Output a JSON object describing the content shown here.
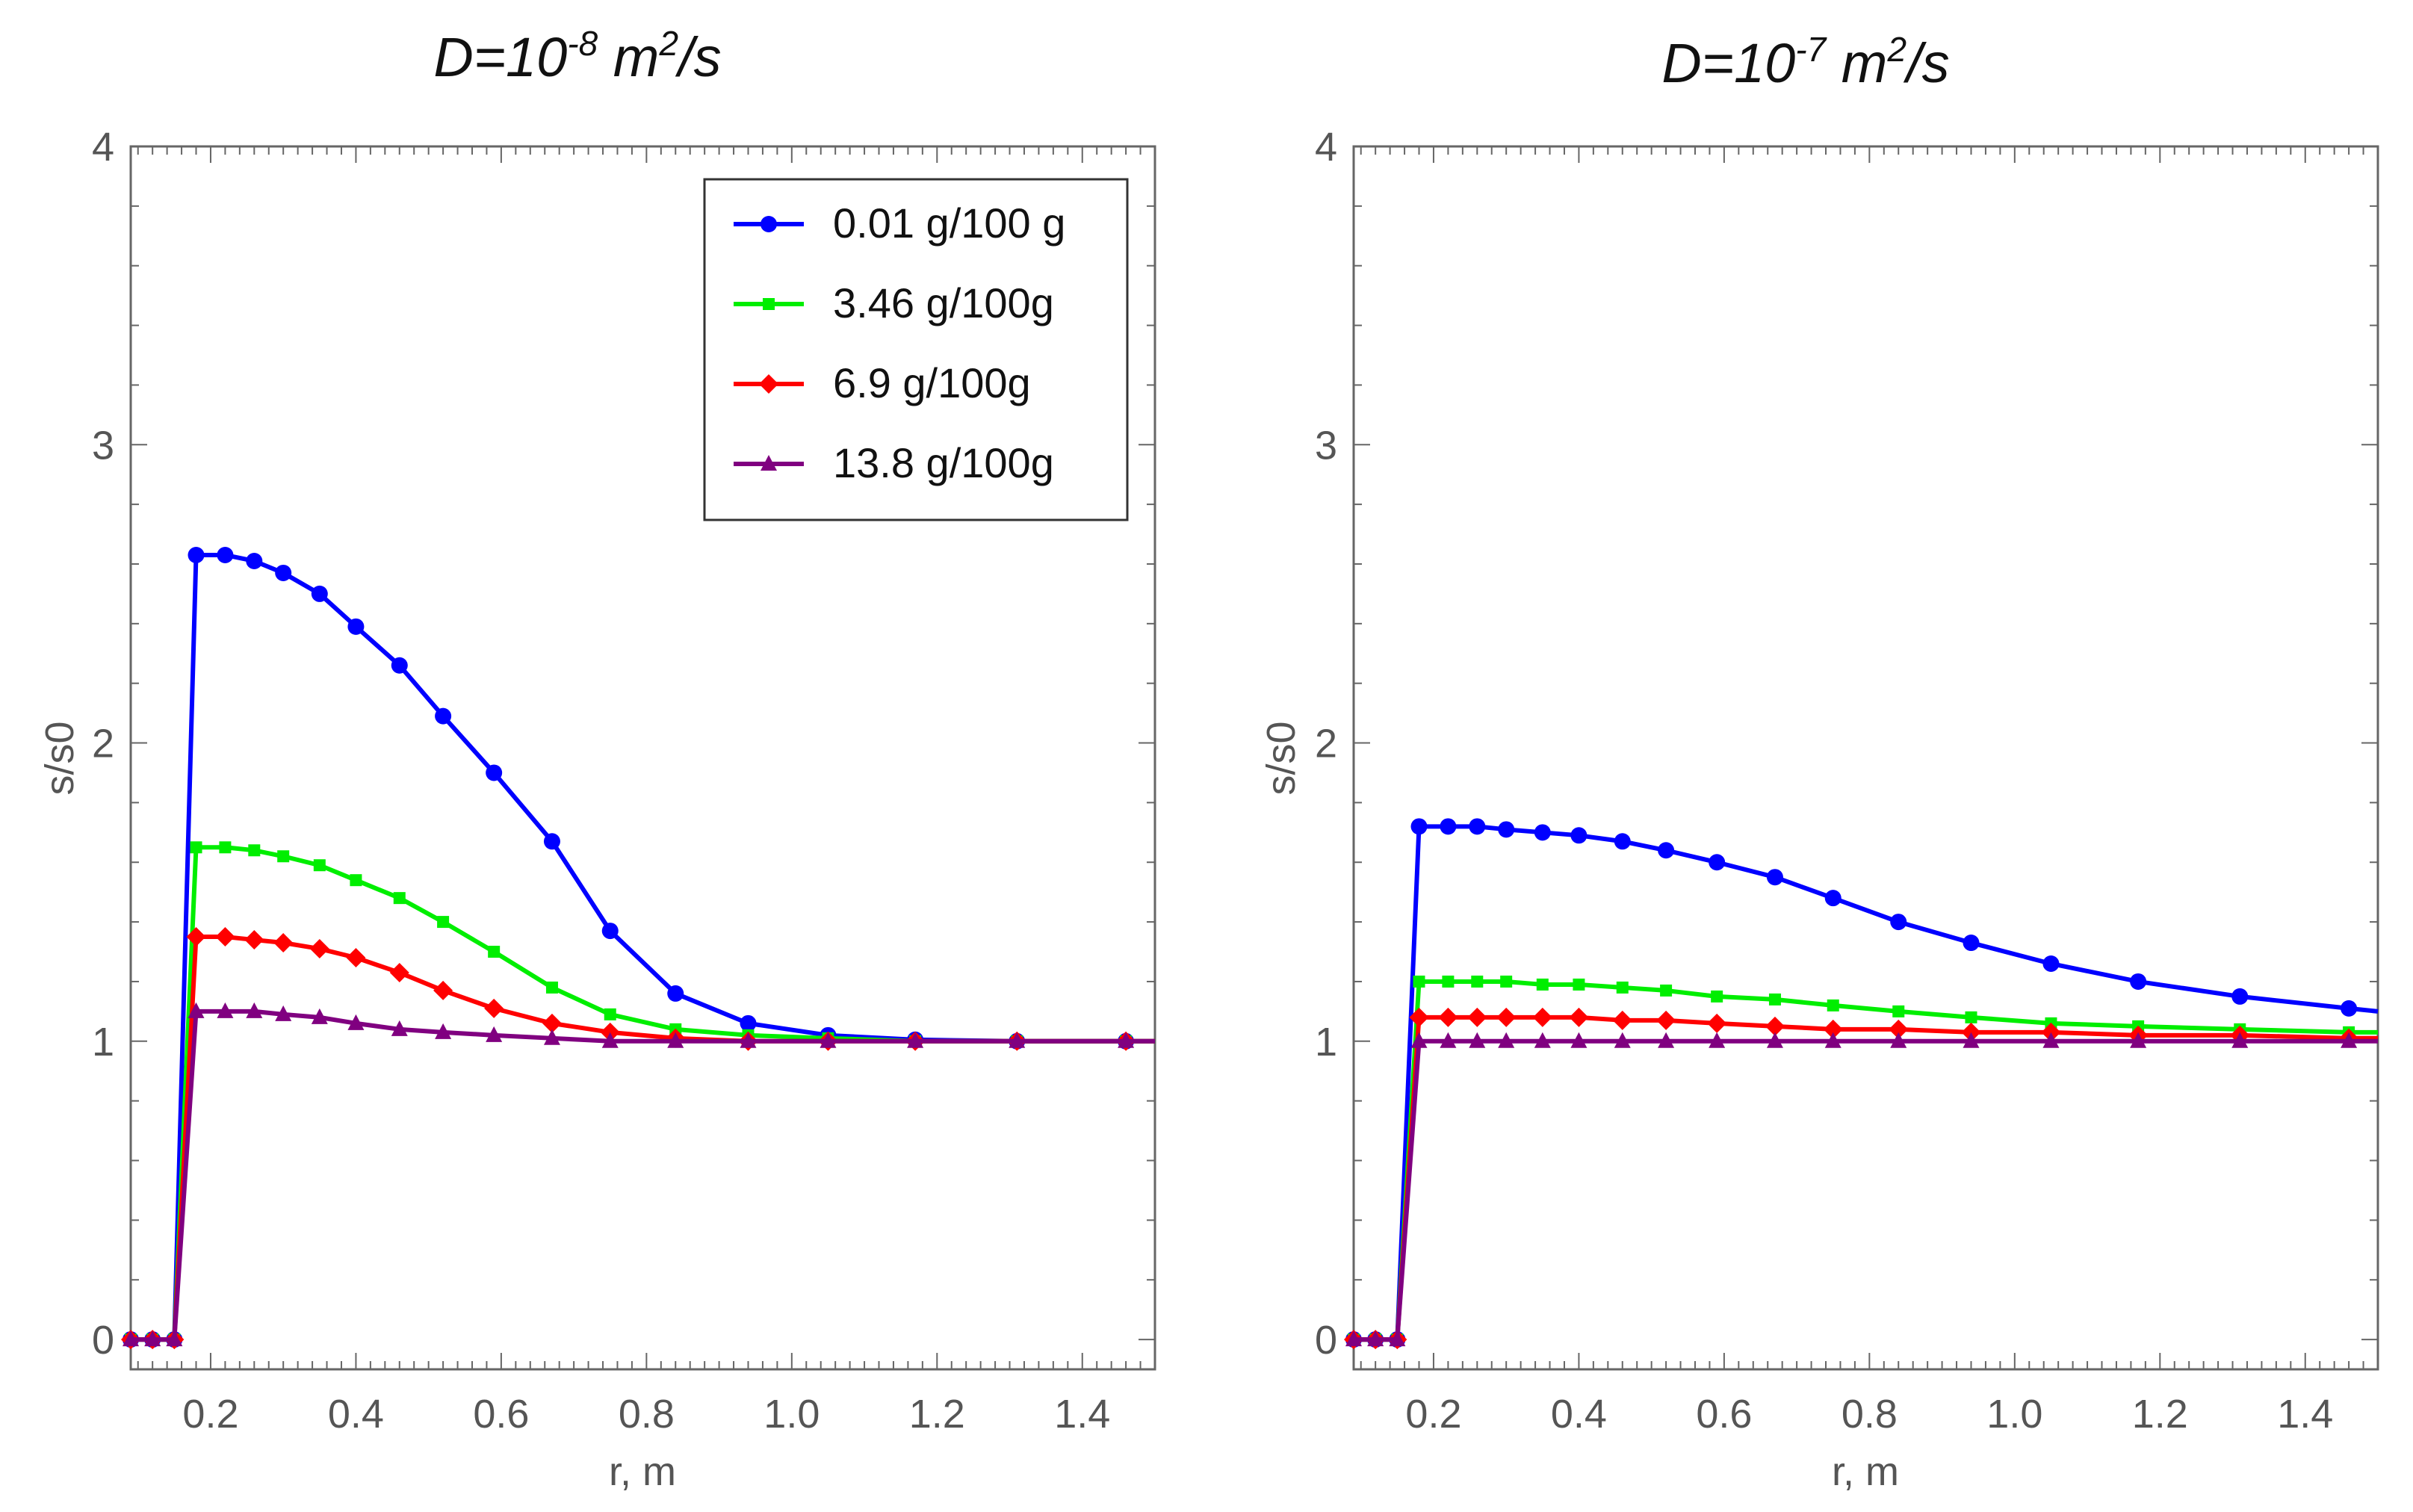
{
  "chart_data": [
    {
      "type": "line",
      "title_prefix": "D=10",
      "title_exp": "-8",
      "title_unit": " m",
      "title_unit_exp": "2",
      "title_suffix": "/s",
      "xlabel": "r, m",
      "ylabel": "s/s0",
      "xlim": [
        0.09,
        1.5
      ],
      "ylim": [
        -0.1,
        4
      ],
      "xticks": [
        0.2,
        0.4,
        0.6,
        0.8,
        1.0,
        1.2,
        1.4
      ],
      "xtick_labels": [
        "0.2",
        "0.4",
        "0.6",
        "0.8",
        "1.0",
        "1.2",
        "1.4"
      ],
      "yticks": [
        0,
        1,
        2,
        3,
        4
      ],
      "ytick_labels": [
        "0",
        "1",
        "2",
        "3",
        "4"
      ],
      "legend": "top-right",
      "x": [
        0.09,
        0.12,
        0.15,
        0.18,
        0.22,
        0.26,
        0.3,
        0.35,
        0.4,
        0.46,
        0.52,
        0.59,
        0.67,
        0.75,
        0.84,
        0.94,
        1.05,
        1.17,
        1.31,
        1.46,
        1.5
      ],
      "series": [
        {
          "name": "0.01 g/100 g",
          "color": "#0000ff",
          "marker": "circle",
          "values": [
            0,
            0,
            0,
            2.63,
            2.63,
            2.61,
            2.57,
            2.5,
            2.39,
            2.26,
            2.09,
            1.9,
            1.67,
            1.37,
            1.16,
            1.06,
            1.02,
            1.005,
            1.0,
            1.0,
            1.0
          ]
        },
        {
          "name": "3.46 g/100g",
          "color": "#00ee00",
          "marker": "square",
          "values": [
            0,
            0,
            0,
            1.65,
            1.65,
            1.64,
            1.62,
            1.59,
            1.54,
            1.48,
            1.4,
            1.3,
            1.18,
            1.09,
            1.04,
            1.02,
            1.01,
            1.0,
            1.0,
            1.0,
            1.0
          ]
        },
        {
          "name": "6.9 g/100g",
          "color": "#ff0000",
          "marker": "diamond",
          "values": [
            0,
            0,
            0,
            1.35,
            1.35,
            1.34,
            1.33,
            1.31,
            1.28,
            1.23,
            1.17,
            1.11,
            1.06,
            1.03,
            1.01,
            1.0,
            1.0,
            1.0,
            1.0,
            1.0,
            1.0
          ]
        },
        {
          "name": "13.8 g/100g",
          "color": "#800080",
          "marker": "triangle",
          "values": [
            0,
            0,
            0,
            1.1,
            1.1,
            1.1,
            1.09,
            1.08,
            1.06,
            1.04,
            1.03,
            1.02,
            1.01,
            1.0,
            1.0,
            1.0,
            1.0,
            1.0,
            1.0,
            1.0,
            1.0
          ]
        }
      ]
    },
    {
      "type": "line",
      "title_prefix": "D=10",
      "title_exp": "-7",
      "title_unit": " m",
      "title_unit_exp": "2",
      "title_suffix": "/s",
      "xlabel": "r, m",
      "ylabel": "s/s0",
      "xlim": [
        0.09,
        1.5
      ],
      "ylim": [
        -0.1,
        4
      ],
      "xticks": [
        0.2,
        0.4,
        0.6,
        0.8,
        1.0,
        1.2,
        1.4
      ],
      "xtick_labels": [
        "0.2",
        "0.4",
        "0.6",
        "0.8",
        "1.0",
        "1.2",
        "1.4"
      ],
      "yticks": [
        0,
        1,
        2,
        3,
        4
      ],
      "ytick_labels": [
        "0",
        "1",
        "2",
        "3",
        "4"
      ],
      "legend": "none",
      "x": [
        0.09,
        0.12,
        0.15,
        0.18,
        0.22,
        0.26,
        0.3,
        0.35,
        0.4,
        0.46,
        0.52,
        0.59,
        0.67,
        0.75,
        0.84,
        0.94,
        1.05,
        1.17,
        1.31,
        1.46,
        1.5
      ],
      "series": [
        {
          "name": "0.01 g/100 g",
          "color": "#0000ff",
          "marker": "circle",
          "values": [
            0,
            0,
            0,
            1.72,
            1.72,
            1.72,
            1.71,
            1.7,
            1.69,
            1.67,
            1.64,
            1.6,
            1.55,
            1.48,
            1.4,
            1.33,
            1.26,
            1.2,
            1.15,
            1.11,
            1.1
          ]
        },
        {
          "name": "3.46 g/100g",
          "color": "#00ee00",
          "marker": "square",
          "values": [
            0,
            0,
            0,
            1.2,
            1.2,
            1.2,
            1.2,
            1.19,
            1.19,
            1.18,
            1.17,
            1.15,
            1.14,
            1.12,
            1.1,
            1.08,
            1.06,
            1.05,
            1.04,
            1.03,
            1.03
          ]
        },
        {
          "name": "6.9 g/100g",
          "color": "#ff0000",
          "marker": "diamond",
          "values": [
            0,
            0,
            0,
            1.08,
            1.08,
            1.08,
            1.08,
            1.08,
            1.08,
            1.07,
            1.07,
            1.06,
            1.05,
            1.04,
            1.04,
            1.03,
            1.03,
            1.02,
            1.02,
            1.01,
            1.01
          ]
        },
        {
          "name": "13.8 g/100g",
          "color": "#800080",
          "marker": "triangle",
          "values": [
            0,
            0,
            0,
            1.0,
            1.0,
            1.0,
            1.0,
            1.0,
            1.0,
            1.0,
            1.0,
            1.0,
            1.0,
            1.0,
            1.0,
            1.0,
            1.0,
            1.0,
            1.0,
            1.0,
            1.0
          ]
        }
      ]
    }
  ]
}
